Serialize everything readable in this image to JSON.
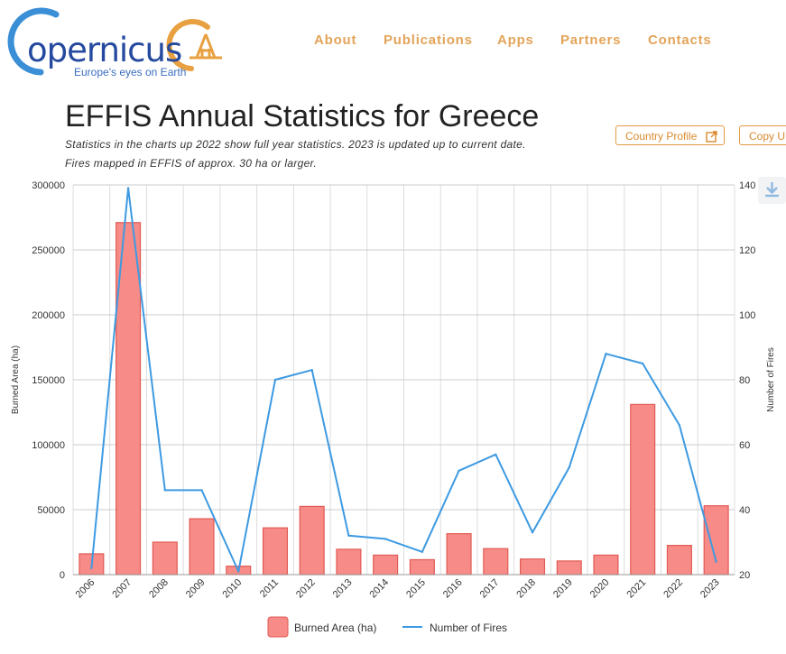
{
  "brand": {
    "name": "opernicus",
    "tagline": "Europe's eyes on Earth"
  },
  "nav": [
    {
      "label": "About"
    },
    {
      "label": "Publications"
    },
    {
      "label": "Apps"
    },
    {
      "label": "Partners"
    },
    {
      "label": "Contacts"
    }
  ],
  "page": {
    "title": "EFFIS Annual Statistics for Greece",
    "subtitle_1": "Statistics in the charts up 2022 show full year statistics. 2023 is updated up to current date.",
    "subtitle_2": "Fires mapped in EFFIS of approx. 30 ha or larger."
  },
  "buttons": {
    "country_profile": "Country Profile",
    "copy_url": "Copy URL"
  },
  "icons": {
    "external_link": "external-link-icon",
    "download": "download-icon"
  },
  "colors": {
    "bar_fill": "#f68b87",
    "bar_stroke": "#e25b55",
    "line": "#3d9ae2",
    "accent": "#e3a45a"
  },
  "chart_data": {
    "type": "bar",
    "categories": [
      "2006",
      "2007",
      "2008",
      "2009",
      "2010",
      "2011",
      "2012",
      "2013",
      "2014",
      "2015",
      "2016",
      "2017",
      "2018",
      "2019",
      "2020",
      "2021",
      "2022",
      "2023"
    ],
    "series": [
      {
        "name": "Burned Area (ha)",
        "type": "bar",
        "axis": "left",
        "values": [
          16000,
          271000,
          25000,
          43000,
          6500,
          36000,
          52500,
          19500,
          15000,
          11500,
          31500,
          20000,
          12000,
          10500,
          15000,
          131000,
          22500,
          53000
        ]
      },
      {
        "name": "Number of Fires",
        "type": "line",
        "axis": "right",
        "values": [
          22,
          139,
          46,
          46,
          21,
          80,
          83,
          32,
          31,
          27,
          52,
          57,
          33,
          53,
          88,
          85,
          66,
          24
        ]
      }
    ],
    "ylabel": "Burned Area (ha)",
    "y2label": "Number of Fires",
    "ylim": [
      0,
      300000
    ],
    "y2lim": [
      20,
      140
    ],
    "yticks": [
      0,
      50000,
      100000,
      150000,
      200000,
      250000,
      300000
    ],
    "y2ticks": [
      20,
      40,
      60,
      80,
      100,
      120,
      140
    ],
    "grid": true,
    "legend_position": "bottom"
  }
}
